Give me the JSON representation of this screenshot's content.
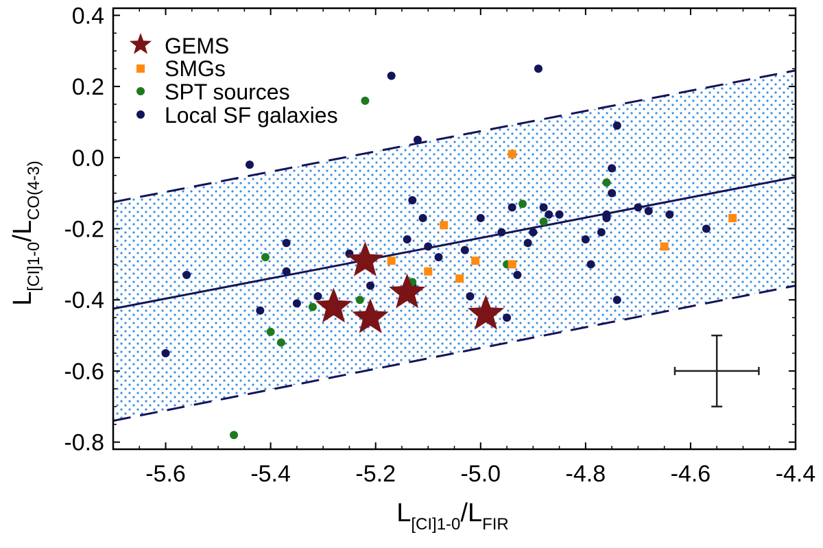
{
  "chart_data": {
    "type": "scatter",
    "xlim": [
      -5.7,
      -4.4
    ],
    "ylim": [
      -0.82,
      0.42
    ],
    "x_ticks": [
      -5.6,
      -5.4,
      -5.2,
      -5.0,
      -4.8,
      -4.6,
      -4.4
    ],
    "x_tick_labels": [
      "-5.6",
      "-5.4",
      "-5.2",
      "-5.0",
      "-4.8",
      "-4.6",
      "-4.4"
    ],
    "y_ticks": [
      0.4,
      0.2,
      0.0,
      -0.2,
      -0.4,
      -0.6,
      -0.8
    ],
    "y_tick_labels": [
      "0.4",
      "0.2",
      "0.0",
      "-0.2",
      "-0.4",
      "-0.6",
      "-0.8"
    ],
    "xlabel": {
      "main": "L",
      "sub1": "[CI]1-0",
      "slash": "/L",
      "sub2": "FIR"
    },
    "ylabel": {
      "main": "L",
      "sub1": "[CI]1-0",
      "slash": "/L",
      "sub2": "CO(4-3)"
    },
    "fit_line": {
      "x": [
        -5.7,
        -4.4
      ],
      "y": [
        -0.425,
        -0.055
      ]
    },
    "band_upper": {
      "x": [
        -5.7,
        -4.4
      ],
      "y": [
        -0.125,
        0.245
      ]
    },
    "band_lower": {
      "x": [
        -5.7,
        -4.4
      ],
      "y": [
        -0.74,
        -0.36
      ]
    },
    "error_bar": {
      "x": -4.55,
      "y": -0.6,
      "xerr": 0.08,
      "yerr": 0.1
    },
    "colors": {
      "gems": "#7b1416",
      "smgs": "#ff8a10",
      "spt": "#1f7a1f",
      "local": "#14145a",
      "band": "#3b8fe0",
      "line": "#14145a"
    },
    "series": [
      {
        "name": "GEMS",
        "marker": "star",
        "color": "#7b1416",
        "legend": "GEMS",
        "x": [
          -5.28,
          -5.22,
          -5.21,
          -5.14,
          -4.99
        ],
        "y": [
          -0.42,
          -0.29,
          -0.45,
          -0.38,
          -0.44
        ]
      },
      {
        "name": "SMGs",
        "marker": "square",
        "color": "#ff8a10",
        "legend": "SMGs",
        "x": [
          -4.94,
          -5.07,
          -5.17,
          -5.1,
          -5.04,
          -5.01,
          -4.94,
          -4.65,
          -4.52
        ],
        "y": [
          0.01,
          -0.19,
          -0.29,
          -0.32,
          -0.34,
          -0.29,
          -0.3,
          -0.25,
          -0.17
        ]
      },
      {
        "name": "SPT sources",
        "marker": "circle",
        "color": "#1f7a1f",
        "legend": "SPT sources",
        "x": [
          -5.22,
          -5.41,
          -5.32,
          -5.23,
          -5.13,
          -5.4,
          -5.38,
          -5.47,
          -4.95,
          -4.92,
          -4.88,
          -4.76
        ],
        "y": [
          0.16,
          -0.28,
          -0.42,
          -0.4,
          -0.35,
          -0.49,
          -0.52,
          -0.78,
          -0.3,
          -0.13,
          -0.18,
          -0.07
        ],
        "legend_only_fix": true
      },
      {
        "name": "Local SF galaxies",
        "marker": "circle",
        "color": "#14145a",
        "legend": "Local SF galaxies",
        "x": [
          -5.17,
          -4.89,
          -5.44,
          -5.12,
          -5.13,
          -5.11,
          -5.14,
          -5.1,
          -5.08,
          -5.03,
          -5.02,
          -5.0,
          -4.96,
          -4.94,
          -4.93,
          -4.91,
          -4.9,
          -4.94,
          -4.95,
          -4.88,
          -4.87,
          -4.85,
          -4.8,
          -4.79,
          -4.77,
          -4.76,
          -4.75,
          -4.75,
          -4.74,
          -4.76,
          -4.7,
          -4.68,
          -4.64,
          -4.57,
          -4.74,
          -5.6,
          -5.56,
          -5.42,
          -5.37,
          -5.37,
          -5.35,
          -5.31,
          -5.25,
          -5.21,
          -5.13
        ],
        "y": [
          0.23,
          0.25,
          -0.02,
          0.05,
          -0.12,
          -0.17,
          -0.23,
          -0.25,
          -0.28,
          -0.26,
          -0.39,
          -0.17,
          -0.21,
          -0.14,
          -0.33,
          -0.24,
          -0.21,
          -0.3,
          -0.45,
          -0.14,
          -0.16,
          -0.16,
          -0.23,
          -0.3,
          -0.21,
          -0.17,
          -0.1,
          -0.03,
          0.09,
          -0.16,
          -0.14,
          -0.15,
          -0.16,
          -0.2,
          -0.4,
          -0.55,
          -0.33,
          -0.43,
          -0.24,
          -0.32,
          -0.41,
          -0.39,
          -0.27,
          -0.36,
          -0.36
        ]
      }
    ]
  }
}
